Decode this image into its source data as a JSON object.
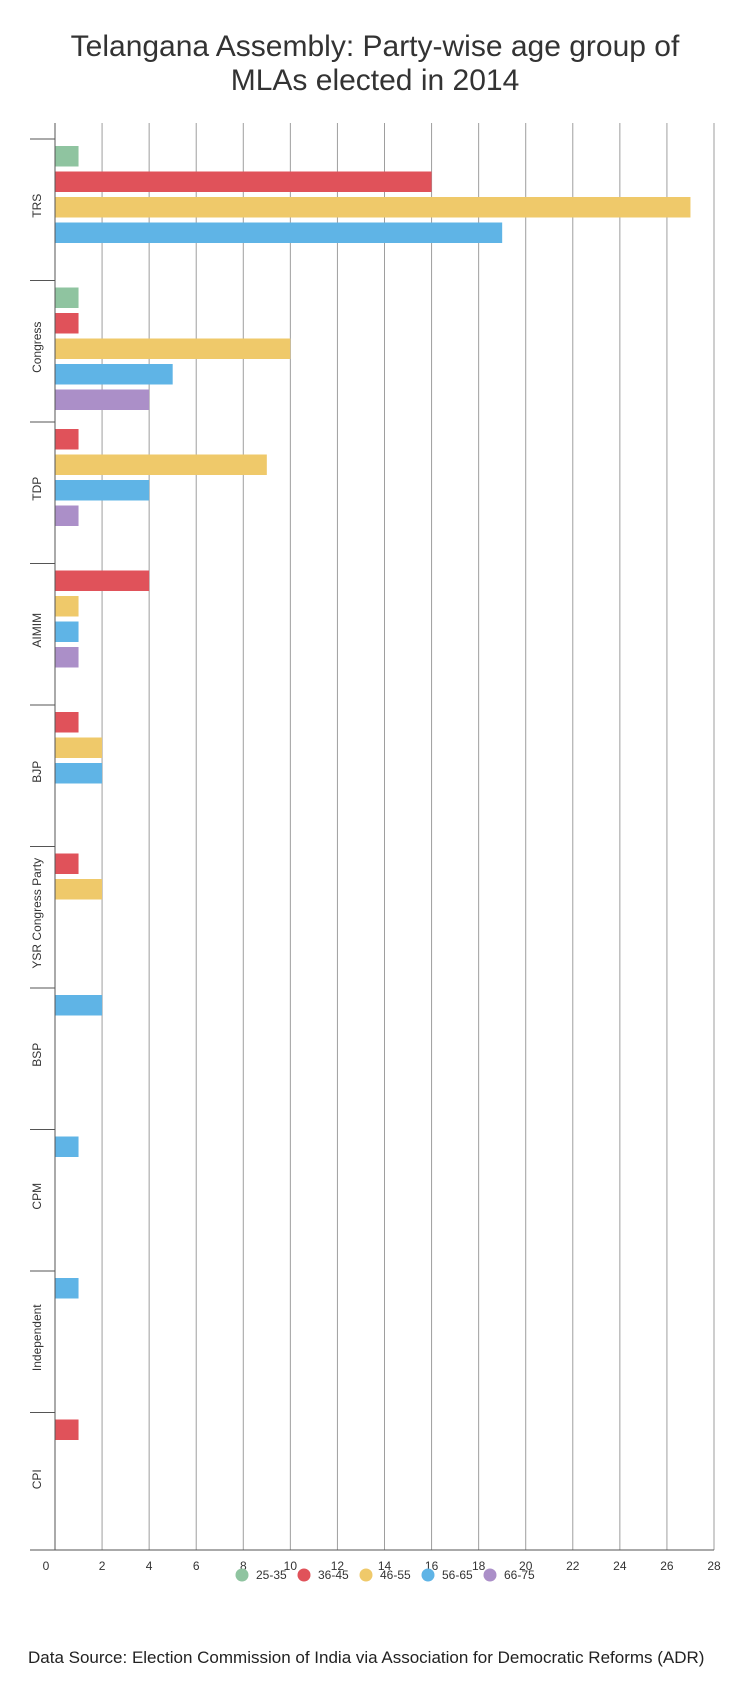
{
  "chart_data": {
    "type": "bar",
    "orientation": "horizontal",
    "title_lines": [
      "Telangana Assembly: Party-wise age group of",
      "MLAs elected in 2014"
    ],
    "categories": [
      "TRS",
      "Congress",
      "TDP",
      "AIMIM",
      "BJP",
      "YSR Congress Party",
      "BSP",
      "CPM",
      "Independent",
      "CPI"
    ],
    "series": [
      {
        "name": "25-35",
        "color": "#8fc4a0",
        "values": [
          1,
          1,
          0,
          0,
          0,
          0,
          0,
          0,
          0,
          0
        ]
      },
      {
        "name": "36-45",
        "color": "#e0525a",
        "values": [
          16,
          1,
          1,
          4,
          1,
          1,
          0,
          0,
          0,
          1
        ]
      },
      {
        "name": "46-55",
        "color": "#efc96a",
        "values": [
          27,
          10,
          9,
          1,
          2,
          2,
          0,
          0,
          0,
          0
        ]
      },
      {
        "name": "56-65",
        "color": "#5fb4e6",
        "values": [
          19,
          5,
          4,
          1,
          2,
          0,
          2,
          1,
          1,
          0
        ]
      },
      {
        "name": "66-75",
        "color": "#ab8fc8",
        "values": [
          0,
          4,
          1,
          1,
          0,
          0,
          0,
          0,
          0,
          0
        ]
      }
    ],
    "xlim": [
      0,
      28
    ],
    "xticks": [
      0,
      2,
      4,
      6,
      8,
      10,
      12,
      14,
      16,
      18,
      20,
      22,
      24,
      26,
      28
    ],
    "xlabel": "",
    "ylabel": "",
    "grid": true,
    "legend_position": "bottom"
  },
  "footer": {
    "source": "Data Source: Election Commission of India via Association for Democratic Reforms (ADR)"
  }
}
